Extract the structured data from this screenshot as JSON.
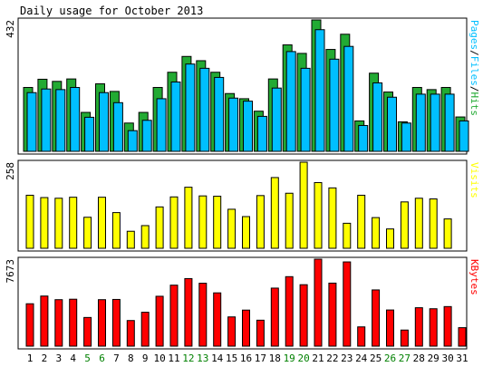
{
  "title": "Daily usage for October 2013",
  "colors": {
    "background": "#ffffff",
    "panel": "#ffffff",
    "frame": "#000000",
    "hits": "#22aa33",
    "files": "#00bfff",
    "pages": "#00bfff",
    "visits": "#ffff00",
    "kbytes": "#ff0000",
    "weekday_label": "#000000",
    "weekend_label": "#008000"
  },
  "chart_data": [
    {
      "type": "bar",
      "panel": "hits-files-pages",
      "max_label": "432",
      "legend": [
        {
          "text": "Pages",
          "color": "#00bfff"
        },
        {
          "text": "/",
          "color": "#000000"
        },
        {
          "text": "Files",
          "color": "#00bfff"
        },
        {
          "text": "/",
          "color": "#000000"
        },
        {
          "text": "Hits",
          "color": "#22aa33"
        }
      ],
      "ylim": [
        0,
        432
      ],
      "categories": [
        "1",
        "2",
        "3",
        "4",
        "5",
        "6",
        "7",
        "8",
        "9",
        "10",
        "11",
        "12",
        "13",
        "14",
        "15",
        "16",
        "17",
        "18",
        "19",
        "20",
        "21",
        "22",
        "23",
        "24",
        "25",
        "26",
        "27",
        "28",
        "29",
        "30",
        "31"
      ],
      "weekend_days": [
        "5",
        "6",
        "12",
        "13",
        "19",
        "20",
        "26",
        "27"
      ],
      "series": [
        {
          "name": "Hits",
          "values": [
            210,
            237,
            230,
            238,
            128,
            222,
            197,
            93,
            128,
            210,
            260,
            312,
            298,
            260,
            190,
            173,
            132,
            238,
            350,
            322,
            432,
            335,
            385,
            100,
            257,
            195,
            97,
            210,
            203,
            210,
            113
          ]
        },
        {
          "name": "Files",
          "values": [
            193,
            205,
            203,
            210,
            112,
            193,
            160,
            68,
            102,
            173,
            228,
            287,
            273,
            243,
            175,
            165,
            115,
            208,
            328,
            273,
            400,
            303,
            345,
            85,
            225,
            178,
            93,
            188,
            188,
            188,
            100
          ]
        }
      ]
    },
    {
      "type": "bar",
      "panel": "visits",
      "max_label": "258",
      "legend": [
        {
          "text": "Visits",
          "color": "#ffff00"
        }
      ],
      "ylim": [
        0,
        258
      ],
      "series": [
        {
          "name": "Visits",
          "values": [
            159,
            152,
            150,
            153,
            93,
            153,
            107,
            51,
            68,
            124,
            154,
            183,
            157,
            156,
            117,
            95,
            158,
            212,
            165,
            258,
            197,
            181,
            75,
            159,
            92,
            58,
            139,
            150,
            148,
            88,
            0
          ]
        }
      ]
    },
    {
      "type": "bar",
      "panel": "kbytes",
      "max_label": "7673",
      "legend": [
        {
          "text": "KBytes",
          "color": "#ff0000"
        }
      ],
      "ylim": [
        0,
        7673
      ],
      "series": [
        {
          "name": "KBytes",
          "values": [
            3740,
            4420,
            4100,
            4140,
            2530,
            4100,
            4120,
            2260,
            2990,
            4400,
            5380,
            5960,
            5550,
            4700,
            2580,
            3180,
            2290,
            5120,
            6130,
            5420,
            7673,
            5560,
            7430,
            1700,
            4960,
            3190,
            1420,
            3390,
            3300,
            3490,
            1630
          ]
        }
      ]
    }
  ]
}
